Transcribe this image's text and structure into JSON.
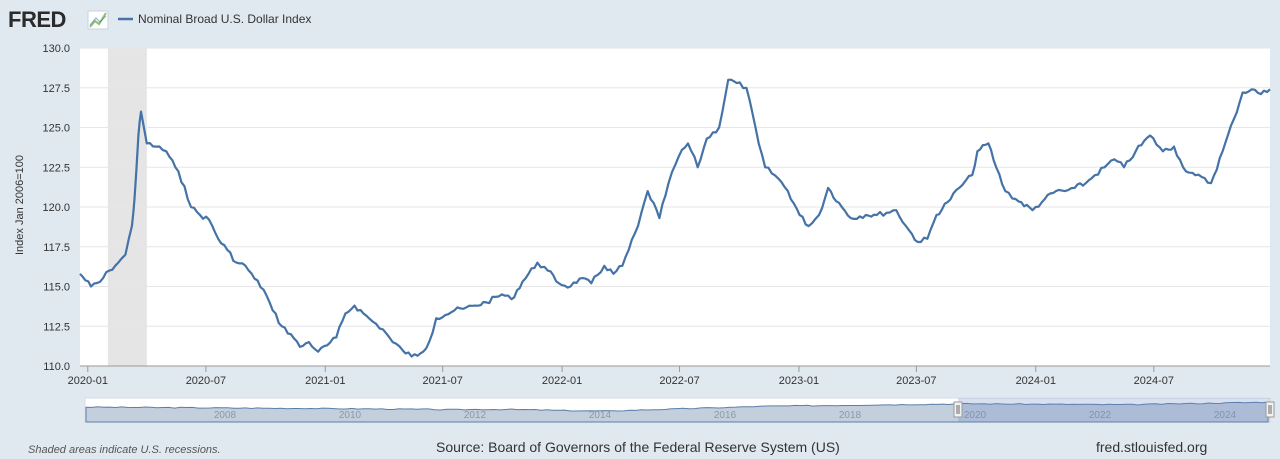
{
  "header": {
    "logo_text": "FRED",
    "legend_label": "Nominal Broad U.S. Dollar Index",
    "series_color": "#4572a7"
  },
  "footer": {
    "recession_note": "Shaded areas indicate U.S. recessions.",
    "source": "Source: Board of Governors of the Federal Reserve System (US)",
    "url": "fred.stlouisfed.org"
  },
  "navigator": {
    "years": [
      "2008",
      "2010",
      "2012",
      "2014",
      "2016",
      "2018",
      "2020",
      "2022",
      "2024"
    ]
  },
  "chart_data": {
    "type": "line",
    "title": "",
    "xlabel": "",
    "ylabel": "Index Jan 2006=100",
    "ylim": [
      110,
      130
    ],
    "yticks": [
      110.0,
      112.5,
      115.0,
      117.5,
      120.0,
      122.5,
      125.0,
      127.5,
      130.0
    ],
    "ytick_labels": [
      "110.0",
      "112.5",
      "115.0",
      "117.5",
      "120.0",
      "122.5",
      "125.0",
      "127.5",
      "130.0"
    ],
    "xlim": [
      "2019-12-20",
      "2024-12-27"
    ],
    "xticks": [
      "2020-01",
      "2020-07",
      "2021-01",
      "2021-07",
      "2022-01",
      "2022-07",
      "2023-01",
      "2023-07",
      "2024-01",
      "2024-07"
    ],
    "recessions": [
      {
        "start": "2020-02",
        "end": "2020-04"
      }
    ],
    "series": [
      {
        "name": "Nominal Broad U.S. Dollar Index",
        "color": "#4572a7",
        "x": [
          "2019-12-20",
          "2020-01-06",
          "2020-01-20",
          "2020-02-03",
          "2020-02-17",
          "2020-02-28",
          "2020-03-09",
          "2020-03-13",
          "2020-03-19",
          "2020-03-23",
          "2020-04-01",
          "2020-04-15",
          "2020-05-01",
          "2020-05-15",
          "2020-05-29",
          "2020-06-08",
          "2020-06-22",
          "2020-07-06",
          "2020-07-20",
          "2020-08-03",
          "2020-08-17",
          "2020-08-31",
          "2020-09-14",
          "2020-09-28",
          "2020-10-12",
          "2020-10-26",
          "2020-11-09",
          "2020-11-23",
          "2020-12-07",
          "2020-12-21",
          "2021-01-04",
          "2021-01-18",
          "2021-02-01",
          "2021-02-15",
          "2021-03-01",
          "2021-03-15",
          "2021-03-31",
          "2021-04-15",
          "2021-04-30",
          "2021-05-14",
          "2021-05-28",
          "2021-06-10",
          "2021-06-21",
          "2021-07-05",
          "2021-07-19",
          "2021-08-02",
          "2021-08-20",
          "2021-09-06",
          "2021-09-30",
          "2021-10-15",
          "2021-11-01",
          "2021-11-24",
          "2021-12-10",
          "2021-12-27",
          "2022-01-14",
          "2022-01-28",
          "2022-02-15",
          "2022-03-07",
          "2022-03-21",
          "2022-04-04",
          "2022-04-28",
          "2022-05-13",
          "2022-05-31",
          "2022-06-14",
          "2022-06-30",
          "2022-07-14",
          "2022-07-29",
          "2022-08-12",
          "2022-08-31",
          "2022-09-14",
          "2022-09-27",
          "2022-10-12",
          "2022-10-31",
          "2022-11-10",
          "2022-11-30",
          "2022-12-15",
          "2023-01-02",
          "2023-01-16",
          "2023-02-01",
          "2023-02-15",
          "2023-03-08",
          "2023-03-22",
          "2023-04-14",
          "2023-05-01",
          "2023-05-31",
          "2023-06-15",
          "2023-07-03",
          "2023-07-18",
          "2023-08-01",
          "2023-08-18",
          "2023-09-05",
          "2023-09-25",
          "2023-10-03",
          "2023-10-20",
          "2023-11-01",
          "2023-11-15",
          "2023-12-01",
          "2023-12-27",
          "2024-01-15",
          "2024-02-01",
          "2024-02-15",
          "2024-03-01",
          "2024-03-18",
          "2024-04-01",
          "2024-04-16",
          "2024-05-01",
          "2024-05-16",
          "2024-06-03",
          "2024-06-25",
          "2024-07-15",
          "2024-08-01",
          "2024-08-15",
          "2024-09-03",
          "2024-09-27",
          "2024-10-15",
          "2024-11-01",
          "2024-11-15",
          "2024-11-29",
          "2024-12-13",
          "2024-12-27"
        ],
        "values": [
          115.8,
          115.0,
          115.3,
          116.0,
          116.5,
          117.0,
          118.8,
          120.5,
          124.5,
          126.0,
          124.0,
          123.8,
          123.5,
          122.5,
          121.3,
          120.0,
          119.5,
          119.2,
          118.0,
          117.3,
          116.5,
          116.3,
          115.5,
          114.8,
          113.5,
          112.5,
          112.0,
          111.2,
          111.5,
          110.9,
          111.3,
          111.8,
          113.3,
          113.8,
          113.3,
          112.8,
          112.3,
          111.5,
          111.0,
          110.6,
          110.8,
          111.5,
          113.0,
          113.2,
          113.5,
          113.6,
          113.8,
          114.0,
          114.5,
          114.2,
          115.3,
          116.5,
          116.0,
          115.2,
          115.0,
          115.5,
          115.2,
          116.3,
          115.8,
          116.3,
          118.8,
          121.0,
          119.3,
          121.5,
          123.2,
          124.0,
          122.5,
          124.3,
          125.0,
          128.0,
          127.8,
          127.5,
          124.0,
          122.5,
          121.8,
          121.0,
          119.5,
          118.8,
          119.5,
          121.2,
          120.0,
          119.3,
          119.5,
          119.5,
          119.8,
          118.8,
          117.8,
          118.0,
          119.5,
          120.3,
          121.2,
          122.0,
          123.5,
          124.0,
          122.5,
          121.0,
          120.5,
          119.8,
          120.5,
          121.0,
          121.0,
          121.2,
          121.5,
          122.0,
          122.5,
          123.0,
          122.5,
          123.5,
          124.5,
          123.5,
          123.8,
          122.5,
          122.0,
          121.5,
          123.5,
          125.5,
          127.2,
          127.4,
          127.1,
          127.4
        ]
      }
    ]
  }
}
